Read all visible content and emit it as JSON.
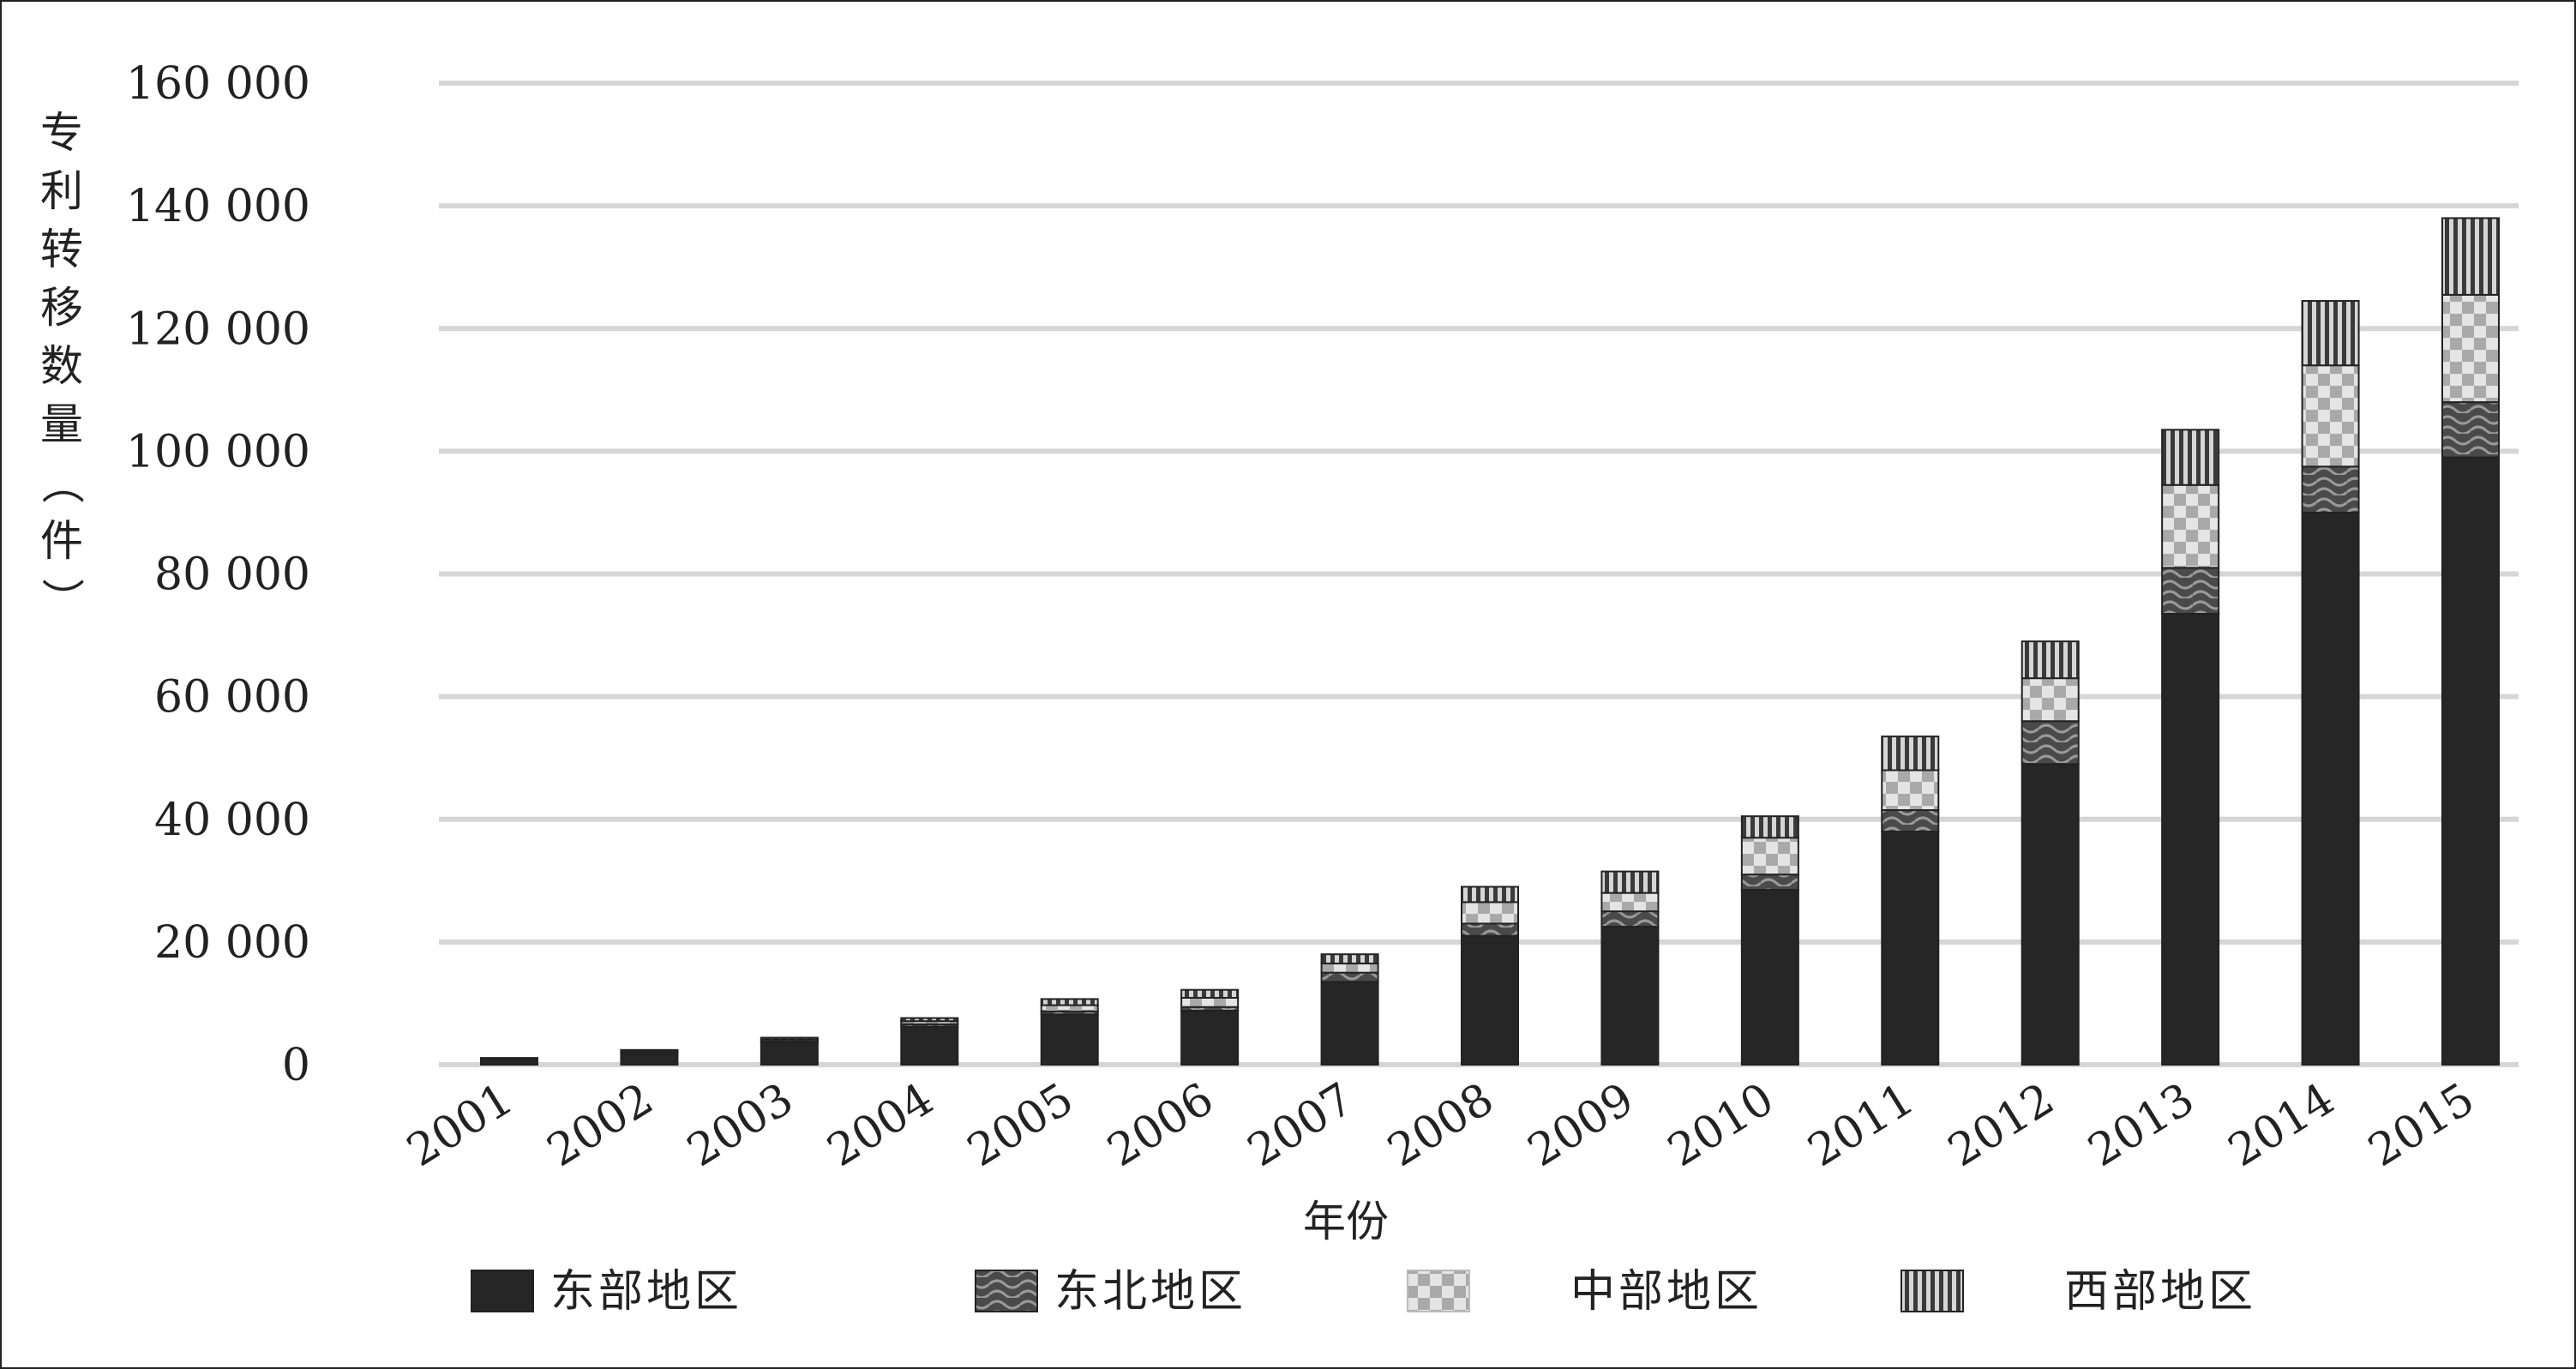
{
  "chart_data": {
    "type": "bar",
    "stacked": true,
    "title": "",
    "xlabel": "年份",
    "ylabel": "专利转移数量（件）",
    "ylim": [
      0,
      160000
    ],
    "yticks": [
      0,
      20000,
      40000,
      60000,
      80000,
      100000,
      120000,
      140000,
      160000
    ],
    "ytick_labels": [
      "0",
      "20 000",
      "40 000",
      "60 000",
      "80 000",
      "100 000",
      "120 000",
      "140 000",
      "160 000"
    ],
    "grid": true,
    "legend_position": "bottom",
    "categories": [
      "2001",
      "2002",
      "2003",
      "2004",
      "2005",
      "2006",
      "2007",
      "2008",
      "2009",
      "2010",
      "2011",
      "2012",
      "2013",
      "2014",
      "2015"
    ],
    "series": [
      {
        "name": "东部地区",
        "pattern": "solid",
        "color": "#262626",
        "values": [
          800,
          1800,
          3500,
          6200,
          8200,
          8800,
          13500,
          21000,
          22500,
          28500,
          38000,
          49000,
          73500,
          90000,
          99000
        ]
      },
      {
        "name": "东北地区",
        "pattern": "wave",
        "color": "#555555",
        "values": [
          100,
          200,
          300,
          400,
          500,
          600,
          1500,
          2000,
          2500,
          2500,
          3500,
          7000,
          7500,
          7500,
          9000
        ]
      },
      {
        "name": "中部地区",
        "pattern": "checker",
        "color": "#cfcfcf",
        "values": [
          100,
          200,
          300,
          500,
          1000,
          1500,
          1500,
          3500,
          3000,
          6000,
          6500,
          7000,
          13500,
          16500,
          17500
        ]
      },
      {
        "name": "西部地区",
        "pattern": "vstripes",
        "color": "#7a7a7a",
        "values": [
          100,
          200,
          300,
          500,
          1000,
          1300,
          1500,
          2500,
          3500,
          3500,
          5500,
          6000,
          9000,
          10500,
          12500
        ]
      }
    ]
  }
}
